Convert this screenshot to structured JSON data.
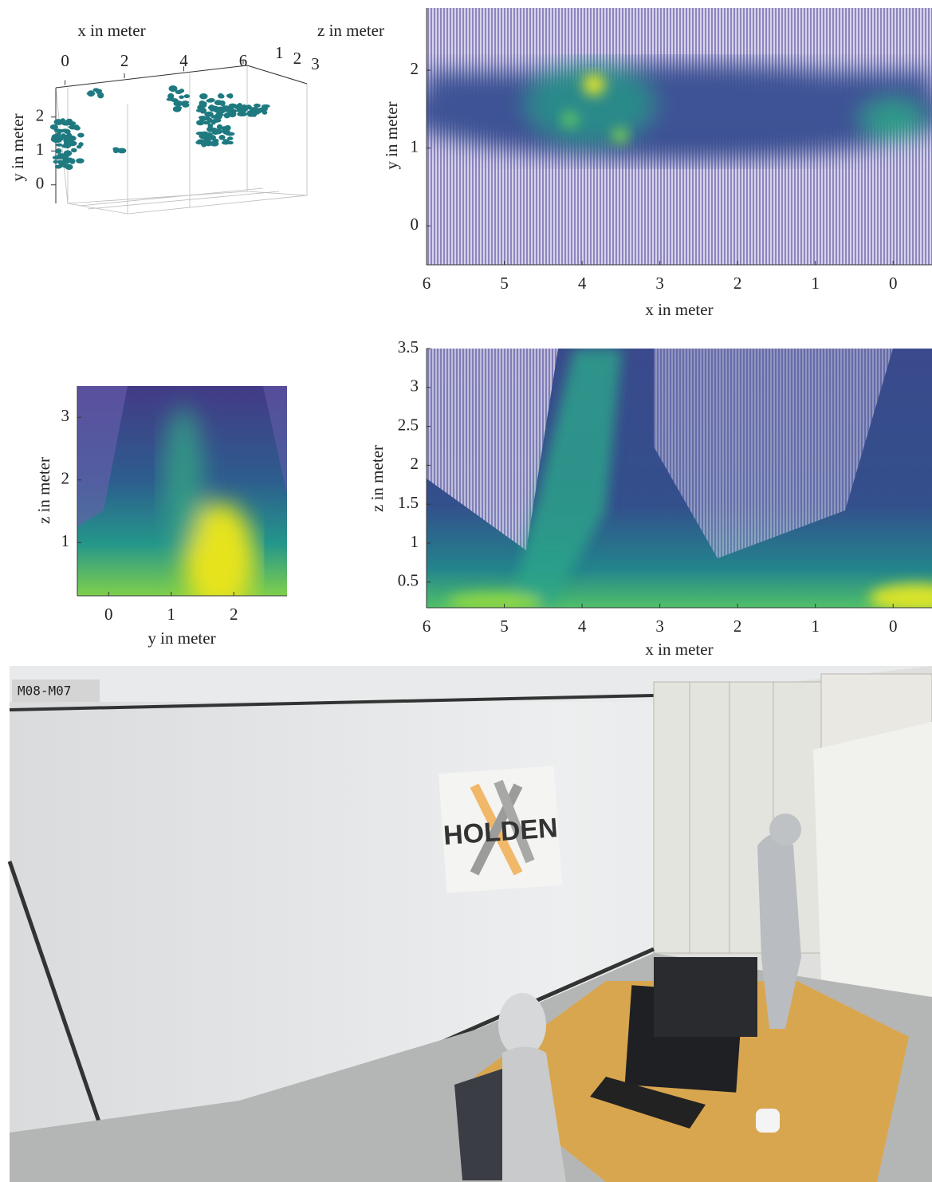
{
  "chart_data": [
    {
      "type": "scatter3d",
      "xlabel": "x in meter",
      "ylabel": "y in meter",
      "zlabel": "z in meter",
      "color": "#1f7a80",
      "xlim": [
        -0.5,
        6
      ],
      "ylim": [
        -0.5,
        2.7
      ],
      "zlim": [
        0.5,
        3.2
      ],
      "xticks": [
        0,
        2,
        4,
        6
      ],
      "yticks": [
        0,
        1,
        2
      ],
      "zticks": [
        1,
        2,
        3
      ]
    },
    {
      "type": "heatmap",
      "xlabel": "x in meter",
      "ylabel": "y in meter",
      "xlim": [
        6,
        -0.5
      ],
      "ylim": [
        -0.5,
        2.8
      ],
      "xticks": [
        6,
        5,
        4,
        3,
        2,
        1,
        0
      ],
      "yticks": [
        0,
        1,
        2
      ]
    },
    {
      "type": "heatmap",
      "xlabel": "y in meter",
      "ylabel": "z in meter",
      "xlim": [
        -0.5,
        2.85
      ],
      "ylim": [
        0.15,
        3.5
      ],
      "xticks": [
        0,
        1,
        2
      ],
      "yticks": [
        1,
        2,
        3
      ]
    },
    {
      "type": "heatmap",
      "xlabel": "x in meter",
      "ylabel": "z in meter",
      "xlim": [
        6,
        -0.5
      ],
      "ylim": [
        0.17,
        3.5
      ],
      "xticks": [
        6,
        5,
        4,
        3,
        2,
        1,
        0
      ],
      "yticks": [
        0.5,
        1,
        1.5,
        2,
        2.5,
        3,
        3.5
      ]
    }
  ],
  "photo": {
    "label": "M08-M07",
    "poster_text": "HOLDEN"
  }
}
